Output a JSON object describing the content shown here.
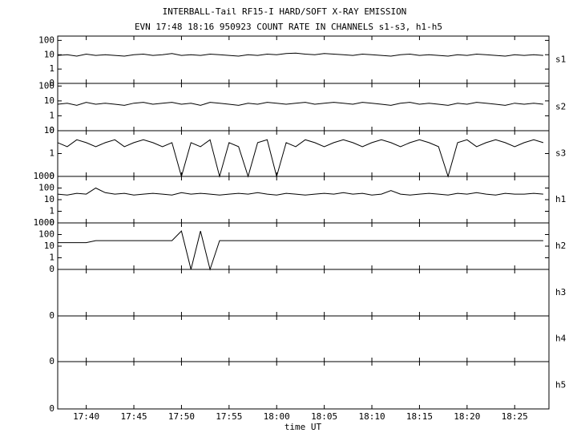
{
  "chart_data": {
    "type": "line",
    "title": "INTERBALL-Tail RF15-I HARD/SOFT X-RAY EMISSION",
    "subtitle": "EVN 17:48 18:16 950923  COUNT RATE IN CHANNELS s1-s3, h1-h5",
    "x_label": "time UT",
    "xlim": [
      1057,
      1108.6
    ],
    "xticks": [
      {
        "value": 1060,
        "label": "17:40"
      },
      {
        "value": 1065,
        "label": "17:45"
      },
      {
        "value": 1070,
        "label": "17:50"
      },
      {
        "value": 1075,
        "label": "17:55"
      },
      {
        "value": 1080,
        "label": "18:00"
      },
      {
        "value": 1085,
        "label": "18:05"
      },
      {
        "value": 1090,
        "label": "18:10"
      },
      {
        "value": 1095,
        "label": "18:15"
      },
      {
        "value": 1100,
        "label": "18:20"
      },
      {
        "value": 1105,
        "label": "18:25"
      }
    ],
    "scale": "symlog",
    "color": "#000000",
    "x": [
      1057,
      1058,
      1059,
      1060,
      1061,
      1062,
      1063,
      1064,
      1065,
      1066,
      1067,
      1068,
      1069,
      1070,
      1071,
      1072,
      1073,
      1074,
      1075,
      1076,
      1077,
      1078,
      1079,
      1080,
      1081,
      1082,
      1083,
      1084,
      1085,
      1086,
      1087,
      1088,
      1089,
      1090,
      1091,
      1092,
      1093,
      1094,
      1095,
      1096,
      1097,
      1098,
      1099,
      1100,
      1101,
      1102,
      1103,
      1104,
      1105,
      1106,
      1107,
      1108
    ],
    "panels": [
      {
        "name": "s1",
        "ylim": [
          0,
          200
        ],
        "yticks": [
          0,
          1,
          10,
          100
        ],
        "values": [
          9,
          10,
          8,
          11,
          9,
          10,
          9,
          8,
          10,
          11,
          9,
          10,
          12,
          9,
          10,
          9,
          11,
          10,
          9,
          8,
          10,
          9,
          11,
          10,
          12,
          13,
          11,
          10,
          12,
          11,
          10,
          9,
          11,
          10,
          9,
          8,
          10,
          11,
          9,
          10,
          9,
          8,
          10,
          9,
          11,
          10,
          9,
          8,
          10,
          9,
          10,
          9
        ]
      },
      {
        "name": "s2",
        "ylim": [
          0,
          150
        ],
        "yticks": [
          0,
          1,
          10,
          100
        ],
        "values": [
          6,
          7,
          5,
          8,
          6,
          7,
          6,
          5,
          7,
          8,
          6,
          7,
          8,
          6,
          7,
          5,
          8,
          7,
          6,
          5,
          7,
          6,
          8,
          7,
          6,
          7,
          8,
          6,
          7,
          8,
          7,
          6,
          8,
          7,
          6,
          5,
          7,
          8,
          6,
          7,
          6,
          5,
          7,
          6,
          8,
          7,
          6,
          5,
          7,
          6,
          7,
          6
        ]
      },
      {
        "name": "s3",
        "ylim": [
          0,
          10
        ],
        "yticks": [
          0,
          1,
          10
        ],
        "values": [
          3,
          2,
          4,
          3,
          2,
          3,
          4,
          2,
          3,
          4,
          3,
          2,
          3,
          0,
          3,
          2,
          4,
          0,
          3,
          2,
          0,
          3,
          4,
          0,
          3,
          2,
          4,
          3,
          2,
          3,
          4,
          3,
          2,
          3,
          4,
          3,
          2,
          3,
          4,
          3,
          2,
          0,
          3,
          4,
          2,
          3,
          4,
          3,
          2,
          3,
          4,
          3
        ]
      },
      {
        "name": "h1",
        "ylim": [
          0,
          1000
        ],
        "yticks": [
          0,
          1,
          10,
          100,
          1000
        ],
        "values": [
          30,
          25,
          35,
          30,
          100,
          40,
          30,
          35,
          25,
          30,
          35,
          30,
          25,
          40,
          30,
          35,
          30,
          25,
          30,
          35,
          30,
          40,
          30,
          25,
          35,
          30,
          25,
          30,
          35,
          30,
          40,
          30,
          35,
          25,
          30,
          60,
          30,
          25,
          30,
          35,
          30,
          25,
          35,
          30,
          40,
          30,
          25,
          35,
          30,
          30,
          35,
          30
        ]
      },
      {
        "name": "h2",
        "ylim": [
          0,
          1000
        ],
        "yticks": [
          0,
          1,
          10,
          100,
          1000
        ],
        "values": [
          20,
          20,
          20,
          20,
          30,
          30,
          30,
          30,
          30,
          30,
          30,
          30,
          30,
          200,
          0,
          200,
          0,
          30,
          30,
          30,
          30,
          30,
          30,
          30,
          30,
          30,
          30,
          30,
          30,
          30,
          30,
          30,
          30,
          30,
          30,
          30,
          30,
          30,
          30,
          30,
          30,
          30,
          30,
          30,
          30,
          30,
          30,
          30,
          30,
          30,
          30,
          30
        ]
      },
      {
        "name": "h3",
        "ylim": [
          0,
          1
        ],
        "yticks": [
          0
        ],
        "values": [
          0,
          0,
          0,
          0,
          0,
          0,
          0,
          0,
          0,
          0,
          0,
          0,
          0,
          0,
          0,
          0,
          0,
          0,
          0,
          0,
          0,
          0,
          0,
          0,
          0,
          0,
          0,
          0,
          0,
          0,
          0,
          0,
          0,
          0,
          0,
          0,
          0,
          0,
          0,
          0,
          0,
          0,
          0,
          0,
          0,
          0,
          0,
          0,
          0,
          0,
          0,
          0
        ]
      },
      {
        "name": "h4",
        "ylim": [
          0,
          1
        ],
        "yticks": [
          0
        ],
        "values": [
          0,
          0,
          0,
          0,
          0,
          0,
          0,
          0,
          0,
          0,
          0,
          0,
          0,
          0,
          0,
          0,
          0,
          0,
          0,
          0,
          0,
          0,
          0,
          0,
          0,
          0,
          0,
          0,
          0,
          0,
          0,
          0,
          0,
          0,
          0,
          0,
          0,
          0,
          0,
          0,
          0,
          0,
          0,
          0,
          0,
          0,
          0,
          0,
          0,
          0,
          0,
          0
        ]
      },
      {
        "name": "h5",
        "ylim": [
          0,
          1
        ],
        "yticks": [
          0
        ],
        "values": [
          0,
          0,
          0,
          0,
          0,
          0,
          0,
          0,
          0,
          0,
          0,
          0,
          0,
          0,
          0,
          0,
          0,
          0,
          0,
          0,
          0,
          0,
          0,
          0,
          0,
          0,
          0,
          0,
          0,
          0,
          0,
          0,
          0,
          0,
          0,
          0,
          0,
          0,
          0,
          0,
          0,
          0,
          0,
          0,
          0,
          0,
          0,
          0,
          0,
          0,
          0,
          0
        ]
      }
    ]
  }
}
